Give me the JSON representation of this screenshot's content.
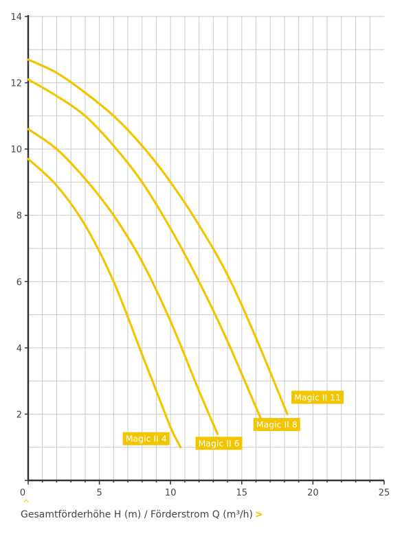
{
  "colors": {
    "curve": "#f2c500",
    "label_bg": "#f2c500",
    "axis": "#333333",
    "grid": "#c9c9c9"
  },
  "caret_icon": "^",
  "xcaption": {
    "text": "Gesamtförderhöhe H (m) / Förderstrom Q (m³/h)",
    "arrow": ">"
  },
  "chart_data": {
    "type": "line",
    "title": "",
    "xlabel": "Gesamtförderhöhe H (m) / Förderstrom Q (m³/h)",
    "ylabel": "",
    "xlim": [
      0,
      25
    ],
    "ylim": [
      0,
      14
    ],
    "x_ticks": [
      "0",
      "5",
      "10",
      "15",
      "20",
      "25"
    ],
    "y_ticks": [
      "2",
      "4",
      "6",
      "8",
      "10",
      "12",
      "14"
    ],
    "grid": true,
    "series": [
      {
        "name": "Magic II 4",
        "x": [
          0,
          2,
          4,
          6,
          8,
          9,
          10,
          10.7
        ],
        "y": [
          9.7,
          8.9,
          7.7,
          6.0,
          3.8,
          2.7,
          1.6,
          1.0
        ]
      },
      {
        "name": "Magic II 6",
        "x": [
          0,
          2,
          4,
          6,
          8,
          10,
          12,
          13.3
        ],
        "y": [
          10.6,
          10.0,
          9.1,
          8.0,
          6.6,
          4.8,
          2.7,
          1.4
        ]
      },
      {
        "name": "Magic II 8",
        "x": [
          0,
          2,
          4,
          6,
          8,
          10,
          12,
          14,
          16.4
        ],
        "y": [
          12.1,
          11.6,
          11.0,
          10.1,
          9.0,
          7.6,
          6.0,
          4.2,
          1.8
        ]
      },
      {
        "name": "Magic II 11",
        "x": [
          0,
          2,
          4,
          6,
          8,
          10,
          12,
          14,
          16,
          18.2
        ],
        "y": [
          12.7,
          12.3,
          11.7,
          11.0,
          10.1,
          9.0,
          7.7,
          6.2,
          4.3,
          2.0
        ]
      }
    ]
  }
}
